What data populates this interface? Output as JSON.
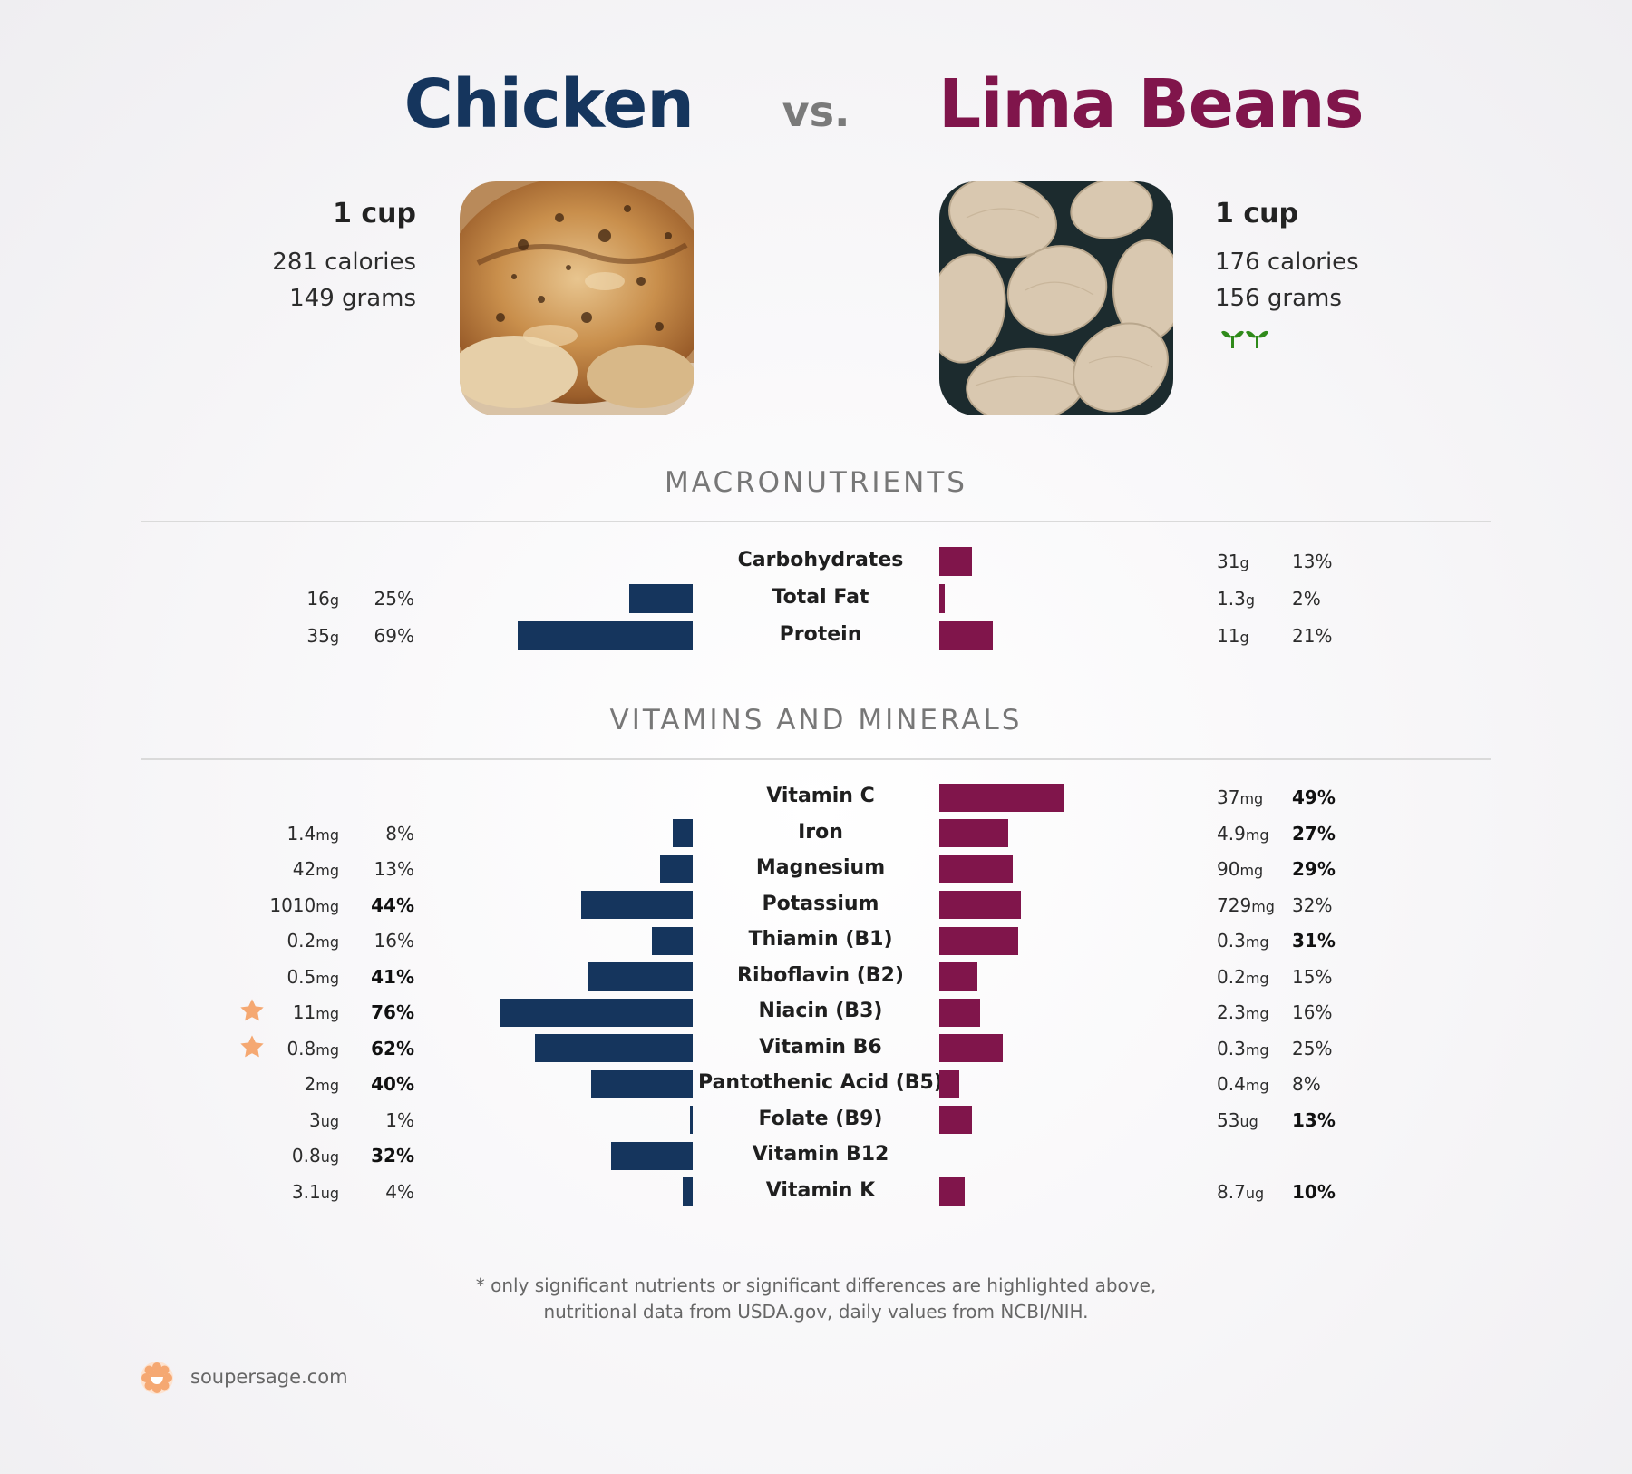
{
  "title": {
    "left": "Chicken",
    "vs": "vs.",
    "right": "Lima Beans"
  },
  "colors": {
    "left": "#15355d",
    "right": "#80154b",
    "star": "#f5a872",
    "sprout": "#2f8a1a"
  },
  "left_food": {
    "serving": "1 cup",
    "calories": "281 calories",
    "grams": "149 grams",
    "photo": "roast-chicken-photo"
  },
  "right_food": {
    "serving": "1 cup",
    "calories": "176 calories",
    "grams": "156 grams",
    "badge": "plant-based-sprout-icons",
    "photo": "lima-beans-photo"
  },
  "sections": {
    "macros": "MACRONUTRIENTS",
    "vitamins": "VITAMINS AND MINERALS"
  },
  "chart_data": [
    {
      "type": "bar",
      "title": "MACRONUTRIENTS",
      "categories": [
        "Carbohydrates",
        "Total Fat",
        "Protein"
      ],
      "series": [
        {
          "name": "Chicken",
          "amounts": [
            "",
            "16",
            "35"
          ],
          "units": [
            "",
            "g",
            "g"
          ],
          "values": [
            null,
            25,
            69
          ],
          "labels": [
            "",
            "25%",
            "69%"
          ],
          "bold": [
            false,
            false,
            false
          ]
        },
        {
          "name": "Lima Beans",
          "amounts": [
            "31",
            "1.3",
            "11"
          ],
          "units": [
            "g",
            "g",
            "g"
          ],
          "values": [
            13,
            2,
            21
          ],
          "labels": [
            "13%",
            "2%",
            "21%"
          ],
          "bold": [
            false,
            false,
            false
          ]
        }
      ]
    },
    {
      "type": "bar",
      "title": "VITAMINS AND MINERALS",
      "categories": [
        "Vitamin C",
        "Iron",
        "Magnesium",
        "Potassium",
        "Thiamin (B1)",
        "Riboflavin (B2)",
        "Niacin (B3)",
        "Vitamin B6",
        "Pantothenic Acid (B5)",
        "Folate (B9)",
        "Vitamin B12",
        "Vitamin K"
      ],
      "series": [
        {
          "name": "Chicken",
          "amounts": [
            "",
            "1.4",
            "42",
            "1010",
            "0.2",
            "0.5",
            "11",
            "0.8",
            "2",
            "3",
            "0.8",
            "3.1"
          ],
          "units": [
            "",
            "mg",
            "mg",
            "mg",
            "mg",
            "mg",
            "mg",
            "mg",
            "mg",
            "ug",
            "ug",
            "ug"
          ],
          "values": [
            null,
            8,
            13,
            44,
            16,
            41,
            76,
            62,
            40,
            1,
            32,
            4
          ],
          "labels": [
            "",
            "8%",
            "13%",
            "44%",
            "16%",
            "41%",
            "76%",
            "62%",
            "40%",
            "1%",
            "32%",
            "4%"
          ],
          "bold": [
            false,
            false,
            false,
            true,
            false,
            true,
            true,
            true,
            true,
            false,
            true,
            false
          ],
          "starred": [
            false,
            false,
            false,
            false,
            false,
            false,
            true,
            true,
            false,
            false,
            false,
            false
          ]
        },
        {
          "name": "Lima Beans",
          "amounts": [
            "37",
            "4.9",
            "90",
            "729",
            "0.3",
            "0.2",
            "2.3",
            "0.3",
            "0.4",
            "53",
            "",
            "8.7"
          ],
          "units": [
            "mg",
            "mg",
            "mg",
            "mg",
            "mg",
            "mg",
            "mg",
            "mg",
            "mg",
            "ug",
            "",
            "ug"
          ],
          "values": [
            49,
            27,
            29,
            32,
            31,
            15,
            16,
            25,
            8,
            13,
            null,
            10
          ],
          "labels": [
            "49%",
            "27%",
            "29%",
            "32%",
            "31%",
            "15%",
            "16%",
            "25%",
            "8%",
            "13%",
            "",
            "10%"
          ],
          "bold": [
            true,
            true,
            true,
            false,
            true,
            false,
            false,
            false,
            false,
            true,
            false,
            true
          ]
        }
      ]
    }
  ],
  "footnote": {
    "line1": "* only significant nutrients or significant differences are highlighted above,",
    "line2": "nutritional data from USDA.gov, daily values from NCBI/NIH."
  },
  "brand": {
    "name": "soupersage.com",
    "icon": "soupersage-logo-icon"
  }
}
